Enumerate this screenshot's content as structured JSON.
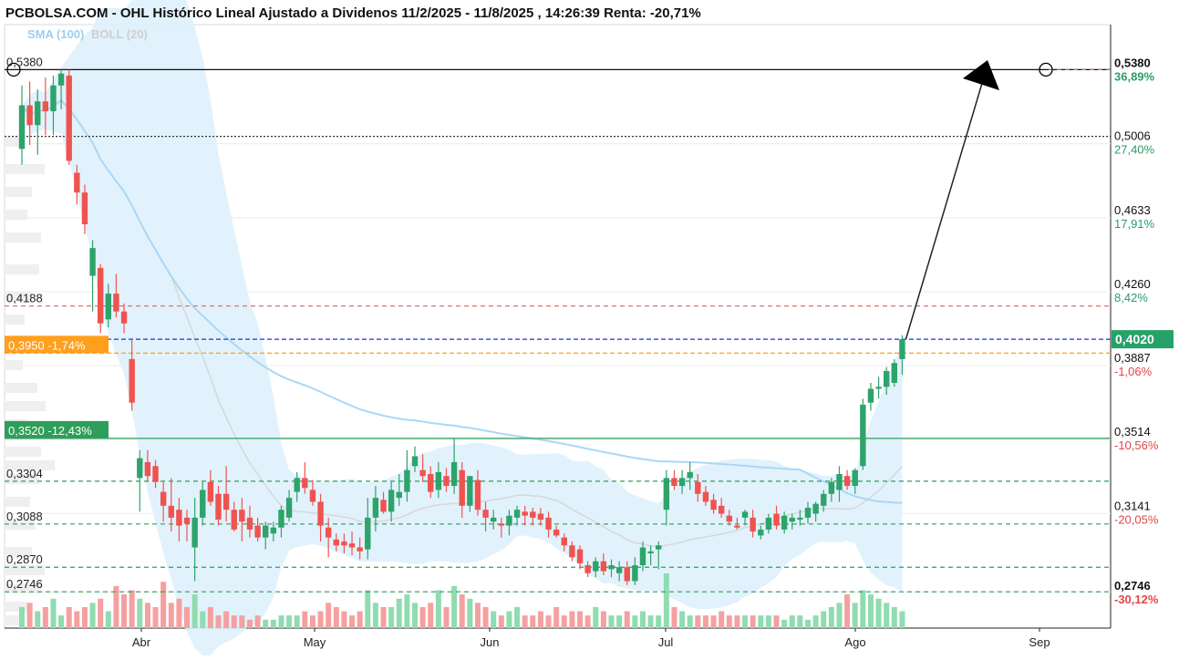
{
  "header": {
    "title": "PCBOLSA.COM - OHL Histórico Lineal Ajustado a Dividenos 11/2/2025 - 11/8/2025 , 14:26:39 Renta: -20,71%"
  },
  "legend": {
    "sma_label": "SMA (100)",
    "boll_label": "BOLL (20)"
  },
  "colors": {
    "up": "#2ea36b",
    "down": "#ef5350",
    "vol_up": "#8fdcb0",
    "vol_down": "#f5a0a0",
    "sma": "#a9d8f6",
    "boll_fill": "#dff1fc",
    "boll_mid": "#d7d7d7",
    "current_box": "#26a269",
    "orange_box": "#ff9f1c",
    "green_box": "#2e9e5b"
  },
  "chart_data": {
    "type": "candlestick",
    "ylim": [
      0.2563,
      0.5607
    ],
    "x_months": [
      "Abr",
      "May",
      "Jun",
      "Jul",
      "Ago",
      "Sep"
    ],
    "right_axis": [
      {
        "price": "0,5380",
        "pct": "36,89%",
        "sign": "pos",
        "bold": true
      },
      {
        "price": "0,5006",
        "pct": "27,40%",
        "sign": "pos",
        "bold": false
      },
      {
        "price": "0,4633",
        "pct": "17,91%",
        "sign": "pos",
        "bold": false
      },
      {
        "price": "0,4260",
        "pct": "8,42%",
        "sign": "pos",
        "bold": false
      },
      {
        "price": "0,3887",
        "pct": "-1,06%",
        "sign": "neg",
        "bold": false
      },
      {
        "price": "0,3514",
        "pct": "-10,56%",
        "sign": "neg",
        "bold": false
      },
      {
        "price": "0,3141",
        "pct": "-20,05%",
        "sign": "neg",
        "bold": false
      },
      {
        "price": "0,2746",
        "pct": "-30,12%",
        "sign": "neg",
        "bold": true
      }
    ],
    "current_price": "0,4020",
    "left_levels": [
      {
        "label": "0,5380",
        "value": 0.538,
        "line": "solid-black"
      },
      {
        "label": "0,4188",
        "value": 0.4188,
        "line": "dash-red"
      },
      {
        "label": "0,3950 -1,74%",
        "value": 0.395,
        "line": "dash-orange",
        "boxed": "orange"
      },
      {
        "label": "0,3520 -12,43%",
        "value": 0.352,
        "line": "solid-green",
        "boxed": "green"
      },
      {
        "label": "0,3304",
        "value": 0.3304,
        "line": "dash-green"
      },
      {
        "label": "0,3088",
        "value": 0.3088,
        "line": "dash-green"
      },
      {
        "label": "0,2870",
        "value": 0.287,
        "line": "dash-green"
      },
      {
        "label": "0,2746",
        "value": 0.2746,
        "line": "dash-green"
      }
    ],
    "extra_lines": [
      {
        "value": 0.5043,
        "line": "dot-black"
      },
      {
        "value": 0.402,
        "line": "dash-blue"
      }
    ],
    "candles": [
      {
        "o": 0.498,
        "h": 0.53,
        "l": 0.49,
        "c": 0.52
      },
      {
        "o": 0.52,
        "h": 0.532,
        "l": 0.5,
        "c": 0.51
      },
      {
        "o": 0.51,
        "h": 0.528,
        "l": 0.495,
        "c": 0.522
      },
      {
        "o": 0.522,
        "h": 0.534,
        "l": 0.505,
        "c": 0.517
      },
      {
        "o": 0.517,
        "h": 0.535,
        "l": 0.505,
        "c": 0.53
      },
      {
        "o": 0.53,
        "h": 0.538,
        "l": 0.518,
        "c": 0.536
      },
      {
        "o": 0.535,
        "h": 0.538,
        "l": 0.49,
        "c": 0.492
      },
      {
        "o": 0.486,
        "h": 0.49,
        "l": 0.47,
        "c": 0.476
      },
      {
        "o": 0.476,
        "h": 0.48,
        "l": 0.455,
        "c": 0.46
      },
      {
        "o": 0.434,
        "h": 0.452,
        "l": 0.416,
        "c": 0.448
      },
      {
        "o": 0.438,
        "h": 0.44,
        "l": 0.405,
        "c": 0.41
      },
      {
        "o": 0.412,
        "h": 0.43,
        "l": 0.408,
        "c": 0.425
      },
      {
        "o": 0.425,
        "h": 0.435,
        "l": 0.413,
        "c": 0.416
      },
      {
        "o": 0.416,
        "h": 0.42,
        "l": 0.405,
        "c": 0.41
      },
      {
        "o": 0.392,
        "h": 0.402,
        "l": 0.366,
        "c": 0.37
      },
      {
        "o": 0.332,
        "h": 0.346,
        "l": 0.315,
        "c": 0.342
      },
      {
        "o": 0.34,
        "h": 0.346,
        "l": 0.33,
        "c": 0.333
      },
      {
        "o": 0.338,
        "h": 0.341,
        "l": 0.327,
        "c": 0.33
      },
      {
        "o": 0.325,
        "h": 0.33,
        "l": 0.31,
        "c": 0.318
      },
      {
        "o": 0.318,
        "h": 0.332,
        "l": 0.305,
        "c": 0.312
      },
      {
        "o": 0.316,
        "h": 0.322,
        "l": 0.3,
        "c": 0.308
      },
      {
        "o": 0.312,
        "h": 0.316,
        "l": 0.3,
        "c": 0.309
      },
      {
        "o": 0.297,
        "h": 0.322,
        "l": 0.28,
        "c": 0.312
      },
      {
        "o": 0.312,
        "h": 0.33,
        "l": 0.308,
        "c": 0.326
      },
      {
        "o": 0.33,
        "h": 0.336,
        "l": 0.318,
        "c": 0.32
      },
      {
        "o": 0.324,
        "h": 0.328,
        "l": 0.308,
        "c": 0.311
      },
      {
        "o": 0.324,
        "h": 0.338,
        "l": 0.31,
        "c": 0.316
      },
      {
        "o": 0.316,
        "h": 0.32,
        "l": 0.305,
        "c": 0.306
      },
      {
        "o": 0.316,
        "h": 0.322,
        "l": 0.3,
        "c": 0.31
      },
      {
        "o": 0.312,
        "h": 0.318,
        "l": 0.302,
        "c": 0.306
      },
      {
        "o": 0.308,
        "h": 0.312,
        "l": 0.3,
        "c": 0.302
      },
      {
        "o": 0.302,
        "h": 0.31,
        "l": 0.296,
        "c": 0.308
      },
      {
        "o": 0.304,
        "h": 0.31,
        "l": 0.3,
        "c": 0.307
      },
      {
        "o": 0.307,
        "h": 0.318,
        "l": 0.302,
        "c": 0.316
      },
      {
        "o": 0.312,
        "h": 0.326,
        "l": 0.31,
        "c": 0.322
      },
      {
        "o": 0.325,
        "h": 0.335,
        "l": 0.32,
        "c": 0.332
      },
      {
        "o": 0.332,
        "h": 0.34,
        "l": 0.324,
        "c": 0.327
      },
      {
        "o": 0.326,
        "h": 0.331,
        "l": 0.318,
        "c": 0.32
      },
      {
        "o": 0.32,
        "h": 0.324,
        "l": 0.3,
        "c": 0.308
      },
      {
        "o": 0.307,
        "h": 0.312,
        "l": 0.292,
        "c": 0.302
      },
      {
        "o": 0.301,
        "h": 0.304,
        "l": 0.295,
        "c": 0.298
      },
      {
        "o": 0.3,
        "h": 0.304,
        "l": 0.294,
        "c": 0.298
      },
      {
        "o": 0.299,
        "h": 0.305,
        "l": 0.293,
        "c": 0.297
      },
      {
        "o": 0.297,
        "h": 0.302,
        "l": 0.291,
        "c": 0.295
      },
      {
        "o": 0.296,
        "h": 0.322,
        "l": 0.291,
        "c": 0.312
      },
      {
        "o": 0.312,
        "h": 0.328,
        "l": 0.305,
        "c": 0.322
      },
      {
        "o": 0.321,
        "h": 0.325,
        "l": 0.314,
        "c": 0.315
      },
      {
        "o": 0.315,
        "h": 0.33,
        "l": 0.31,
        "c": 0.326
      },
      {
        "o": 0.322,
        "h": 0.334,
        "l": 0.318,
        "c": 0.325
      },
      {
        "o": 0.325,
        "h": 0.346,
        "l": 0.32,
        "c": 0.336
      },
      {
        "o": 0.338,
        "h": 0.348,
        "l": 0.335,
        "c": 0.343
      },
      {
        "o": 0.336,
        "h": 0.344,
        "l": 0.33,
        "c": 0.333
      },
      {
        "o": 0.334,
        "h": 0.338,
        "l": 0.322,
        "c": 0.325
      },
      {
        "o": 0.326,
        "h": 0.34,
        "l": 0.322,
        "c": 0.335
      },
      {
        "o": 0.333,
        "h": 0.337,
        "l": 0.325,
        "c": 0.328
      },
      {
        "o": 0.328,
        "h": 0.352,
        "l": 0.324,
        "c": 0.34
      },
      {
        "o": 0.336,
        "h": 0.34,
        "l": 0.312,
        "c": 0.318
      },
      {
        "o": 0.318,
        "h": 0.333,
        "l": 0.315,
        "c": 0.333
      },
      {
        "o": 0.331,
        "h": 0.336,
        "l": 0.313,
        "c": 0.316
      },
      {
        "o": 0.316,
        "h": 0.32,
        "l": 0.305,
        "c": 0.312
      },
      {
        "o": 0.31,
        "h": 0.316,
        "l": 0.306,
        "c": 0.312
      },
      {
        "o": 0.309,
        "h": 0.312,
        "l": 0.302,
        "c": 0.308
      },
      {
        "o": 0.308,
        "h": 0.316,
        "l": 0.303,
        "c": 0.313
      },
      {
        "o": 0.312,
        "h": 0.318,
        "l": 0.308,
        "c": 0.316
      },
      {
        "o": 0.315,
        "h": 0.318,
        "l": 0.308,
        "c": 0.313
      },
      {
        "o": 0.315,
        "h": 0.317,
        "l": 0.308,
        "c": 0.312
      },
      {
        "o": 0.314,
        "h": 0.317,
        "l": 0.308,
        "c": 0.311
      },
      {
        "o": 0.312,
        "h": 0.315,
        "l": 0.302,
        "c": 0.306
      },
      {
        "o": 0.306,
        "h": 0.308,
        "l": 0.302,
        "c": 0.303
      },
      {
        "o": 0.302,
        "h": 0.304,
        "l": 0.295,
        "c": 0.298
      },
      {
        "o": 0.298,
        "h": 0.3,
        "l": 0.29,
        "c": 0.292
      },
      {
        "o": 0.296,
        "h": 0.298,
        "l": 0.286,
        "c": 0.289
      },
      {
        "o": 0.288,
        "h": 0.29,
        "l": 0.282,
        "c": 0.284
      },
      {
        "o": 0.285,
        "h": 0.292,
        "l": 0.282,
        "c": 0.29
      },
      {
        "o": 0.29,
        "h": 0.294,
        "l": 0.283,
        "c": 0.285
      },
      {
        "o": 0.286,
        "h": 0.291,
        "l": 0.282,
        "c": 0.288
      },
      {
        "o": 0.284,
        "h": 0.29,
        "l": 0.28,
        "c": 0.287
      },
      {
        "o": 0.287,
        "h": 0.29,
        "l": 0.278,
        "c": 0.28
      },
      {
        "o": 0.28,
        "h": 0.292,
        "l": 0.278,
        "c": 0.288
      },
      {
        "o": 0.288,
        "h": 0.3,
        "l": 0.285,
        "c": 0.297
      },
      {
        "o": 0.294,
        "h": 0.298,
        "l": 0.288,
        "c": 0.295
      },
      {
        "o": 0.296,
        "h": 0.3,
        "l": 0.286,
        "c": 0.298
      },
      {
        "o": 0.316,
        "h": 0.336,
        "l": 0.308,
        "c": 0.332
      },
      {
        "o": 0.332,
        "h": 0.336,
        "l": 0.326,
        "c": 0.328
      },
      {
        "o": 0.328,
        "h": 0.336,
        "l": 0.324,
        "c": 0.332
      },
      {
        "o": 0.332,
        "h": 0.34,
        "l": 0.326,
        "c": 0.335
      },
      {
        "o": 0.33,
        "h": 0.334,
        "l": 0.32,
        "c": 0.324
      },
      {
        "o": 0.325,
        "h": 0.328,
        "l": 0.318,
        "c": 0.32
      },
      {
        "o": 0.321,
        "h": 0.324,
        "l": 0.314,
        "c": 0.316
      },
      {
        "o": 0.318,
        "h": 0.322,
        "l": 0.312,
        "c": 0.314
      },
      {
        "o": 0.313,
        "h": 0.316,
        "l": 0.308,
        "c": 0.31
      },
      {
        "o": 0.308,
        "h": 0.312,
        "l": 0.306,
        "c": 0.307
      },
      {
        "o": 0.312,
        "h": 0.316,
        "l": 0.308,
        "c": 0.315
      },
      {
        "o": 0.312,
        "h": 0.316,
        "l": 0.302,
        "c": 0.305
      },
      {
        "o": 0.303,
        "h": 0.308,
        "l": 0.301,
        "c": 0.306
      },
      {
        "o": 0.306,
        "h": 0.314,
        "l": 0.304,
        "c": 0.312
      },
      {
        "o": 0.314,
        "h": 0.318,
        "l": 0.306,
        "c": 0.308
      },
      {
        "o": 0.306,
        "h": 0.315,
        "l": 0.304,
        "c": 0.313
      },
      {
        "o": 0.31,
        "h": 0.314,
        "l": 0.306,
        "c": 0.312
      },
      {
        "o": 0.311,
        "h": 0.316,
        "l": 0.308,
        "c": 0.312
      },
      {
        "o": 0.312,
        "h": 0.32,
        "l": 0.309,
        "c": 0.317
      },
      {
        "o": 0.314,
        "h": 0.32,
        "l": 0.31,
        "c": 0.319
      },
      {
        "o": 0.318,
        "h": 0.326,
        "l": 0.315,
        "c": 0.324
      },
      {
        "o": 0.324,
        "h": 0.332,
        "l": 0.32,
        "c": 0.33
      },
      {
        "o": 0.326,
        "h": 0.338,
        "l": 0.32,
        "c": 0.334
      },
      {
        "o": 0.333,
        "h": 0.336,
        "l": 0.326,
        "c": 0.328
      },
      {
        "o": 0.328,
        "h": 0.337,
        "l": 0.324,
        "c": 0.336
      },
      {
        "o": 0.338,
        "h": 0.372,
        "l": 0.336,
        "c": 0.369
      },
      {
        "o": 0.37,
        "h": 0.38,
        "l": 0.366,
        "c": 0.377
      },
      {
        "o": 0.377,
        "h": 0.383,
        "l": 0.372,
        "c": 0.378
      },
      {
        "o": 0.378,
        "h": 0.388,
        "l": 0.374,
        "c": 0.386
      },
      {
        "o": 0.38,
        "h": 0.392,
        "l": 0.378,
        "c": 0.39
      },
      {
        "o": 0.392,
        "h": 0.404,
        "l": 0.384,
        "c": 0.402
      }
    ],
    "volume_rel": [
      0.5,
      0.6,
      0.4,
      0.5,
      0.7,
      0.3,
      0.5,
      0.4,
      0.5,
      0.6,
      0.7,
      0.4,
      1.0,
      0.8,
      0.9,
      0.7,
      0.6,
      0.5,
      1.1,
      0.6,
      0.7,
      0.5,
      0.8,
      0.4,
      0.5,
      0.3,
      0.4,
      0.3,
      0.3,
      0.2,
      0.3,
      0.2,
      0.2,
      0.3,
      0.3,
      0.3,
      0.4,
      0.3,
      0.4,
      0.6,
      0.5,
      0.4,
      0.3,
      0.4,
      0.9,
      0.6,
      0.5,
      0.5,
      0.7,
      0.8,
      0.6,
      0.5,
      0.6,
      0.9,
      0.5,
      1.0,
      0.8,
      0.7,
      0.6,
      0.5,
      0.4,
      0.3,
      0.4,
      0.5,
      0.3,
      0.3,
      0.4,
      0.3,
      0.5,
      0.3,
      0.4,
      0.4,
      0.3,
      0.5,
      0.4,
      0.3,
      0.3,
      0.4,
      0.3,
      0.4,
      0.3,
      0.3,
      1.3,
      0.5,
      0.4,
      0.3,
      0.3,
      0.3,
      0.3,
      0.4,
      0.3,
      0.3,
      0.3,
      0.3,
      0.3,
      0.3,
      0.3,
      0.2,
      0.3,
      0.3,
      0.2,
      0.3,
      0.4,
      0.5,
      0.6,
      0.8,
      0.6,
      0.9,
      0.8,
      0.7,
      0.6,
      0.5,
      0.4
    ]
  }
}
